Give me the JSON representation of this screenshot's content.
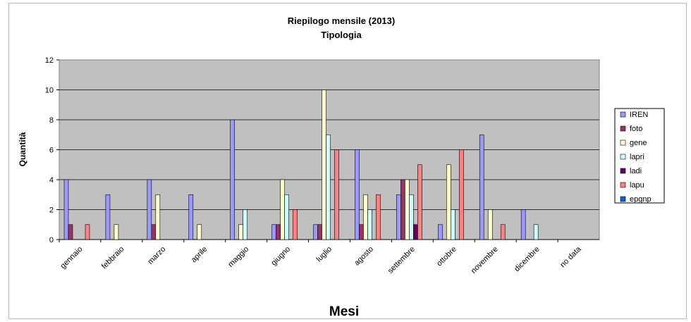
{
  "chart_data": {
    "type": "bar",
    "title": "Riepilogo mensile (2013)",
    "subtitle": "Tipologia",
    "xlabel": "Mesi",
    "ylabel": "Quantità",
    "ylim": [
      0,
      12
    ],
    "yticks": [
      0,
      2,
      4,
      6,
      8,
      10,
      12
    ],
    "grid": true,
    "legend_position": "right",
    "categories": [
      "gennaio",
      "febbraio",
      "marzo",
      "aprile",
      "maggio",
      "giugno",
      "luglio",
      "agosto",
      "settembre",
      "ottobre",
      "novembre",
      "dicembre",
      "no data"
    ],
    "series": [
      {
        "name": "IREN",
        "color": "#9999ff",
        "values": [
          4,
          3,
          4,
          3,
          8,
          1,
          1,
          6,
          3,
          1,
          7,
          2,
          0
        ]
      },
      {
        "name": "foto",
        "color": "#993366",
        "values": [
          1,
          0,
          1,
          0,
          0,
          1,
          1,
          1,
          4,
          0,
          0,
          0,
          0
        ]
      },
      {
        "name": "gene",
        "color": "#ffffcc",
        "values": [
          0,
          1,
          3,
          1,
          1,
          4,
          10,
          3,
          4,
          5,
          2,
          0,
          0
        ]
      },
      {
        "name": "lapri",
        "color": "#ccffff",
        "values": [
          0,
          0,
          0,
          0,
          2,
          3,
          7,
          2,
          3,
          2,
          0,
          1,
          0
        ]
      },
      {
        "name": "ladi",
        "color": "#660066",
        "values": [
          0,
          0,
          0,
          0,
          0,
          0,
          0,
          0,
          1,
          0,
          0,
          0,
          0
        ]
      },
      {
        "name": "lapu",
        "color": "#ff8080",
        "values": [
          1,
          0,
          0,
          0,
          0,
          2,
          6,
          3,
          5,
          6,
          1,
          0,
          0
        ]
      },
      {
        "name": "epgnp",
        "color": "#0066cc",
        "values": [
          0,
          0,
          0,
          0,
          0,
          0,
          0,
          0,
          0,
          0,
          0,
          0,
          0
        ]
      }
    ]
  }
}
